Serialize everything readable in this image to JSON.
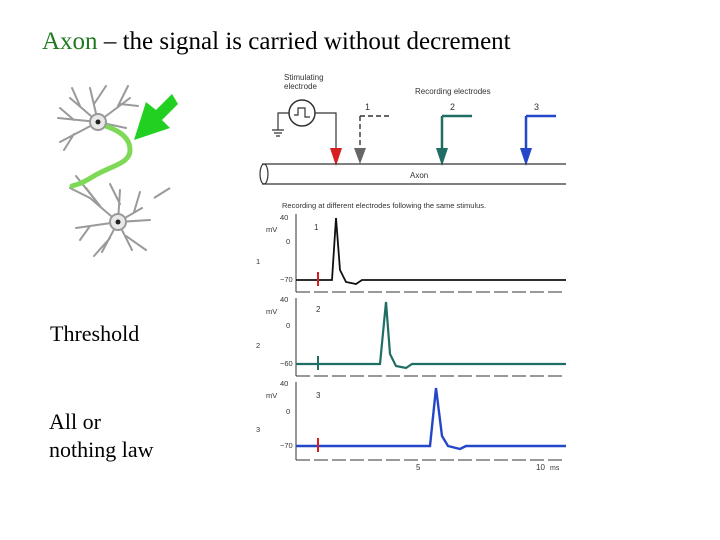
{
  "title": {
    "highlight": "Axon",
    "rest": " – the signal is carried without decrement"
  },
  "labels": {
    "threshold": "Threshold",
    "all_or_nothing_1": "All or",
    "all_or_nothing_2": "nothing law"
  },
  "figure": {
    "stimulating_electrode_1": "Stimulating",
    "stimulating_electrode_2": "electrode",
    "recording_electrodes": "Recording electrodes",
    "electrode_1": "1",
    "electrode_2": "2",
    "electrode_3": "3",
    "axon": "Axon",
    "caption": "Recording at different electrodes following the same stimulus.",
    "mv_unit": "mV",
    "ms_unit": "ms",
    "tick_40": "40",
    "tick_0": "0",
    "tick_minus70": "−70",
    "tick_minus60": "−60",
    "tick_5": "5",
    "tick_10": "10",
    "trace_1": "1",
    "trace_2": "2",
    "trace_3": "3"
  },
  "colors": {
    "electrode_1": "#d42020",
    "electrode_2": "#1f6e63",
    "electrode_3": "#2446c9",
    "axon_highlight": "#7ed957",
    "arrow": "#22d022"
  }
}
